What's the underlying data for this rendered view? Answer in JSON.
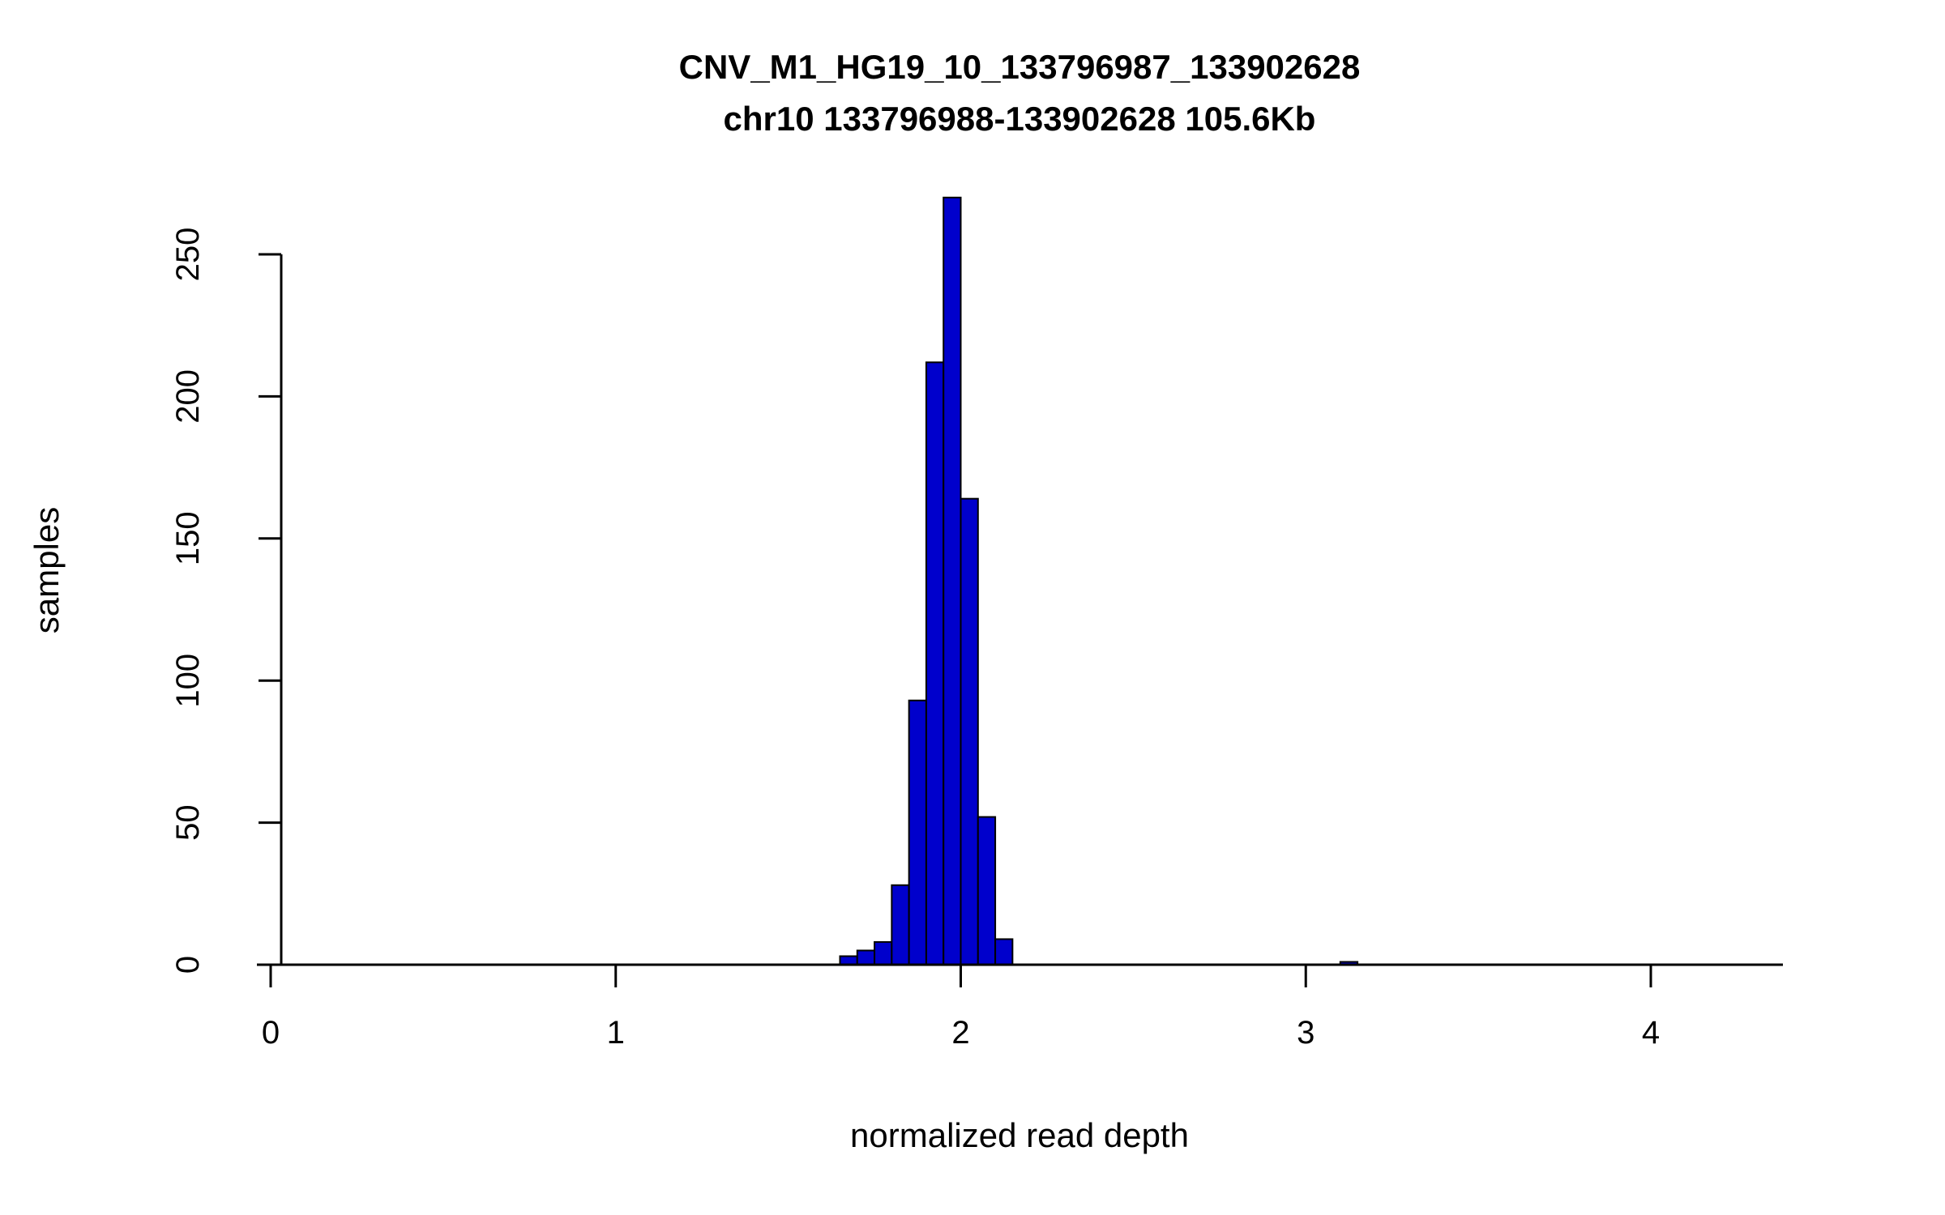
{
  "chart_data": {
    "type": "bar",
    "title": "CNV_M1_HG19_10_133796987_133902628",
    "subtitle": "chr10 133796988-133902628 105.6Kb",
    "xlabel": "normalized read depth",
    "ylabel": "samples",
    "bar_color": "#0000CC",
    "bar_border_color": "#000000",
    "axis_color": "#000000",
    "bin_width": 0.05,
    "bins": [
      {
        "x": 1.65,
        "count": 3
      },
      {
        "x": 1.7,
        "count": 5
      },
      {
        "x": 1.75,
        "count": 8
      },
      {
        "x": 1.8,
        "count": 28
      },
      {
        "x": 1.85,
        "count": 93
      },
      {
        "x": 1.9,
        "count": 212
      },
      {
        "x": 1.95,
        "count": 270
      },
      {
        "x": 2.0,
        "count": 164
      },
      {
        "x": 2.05,
        "count": 52
      },
      {
        "x": 2.1,
        "count": 9
      },
      {
        "x": 3.1,
        "count": 1
      }
    ],
    "x_ticks": [
      0,
      1,
      2,
      3,
      4
    ],
    "y_ticks": [
      0,
      50,
      100,
      150,
      200,
      250
    ],
    "xlim": [
      -0.04,
      4.38
    ],
    "ylim": [
      0,
      270
    ],
    "grid": false,
    "legend": "none"
  }
}
